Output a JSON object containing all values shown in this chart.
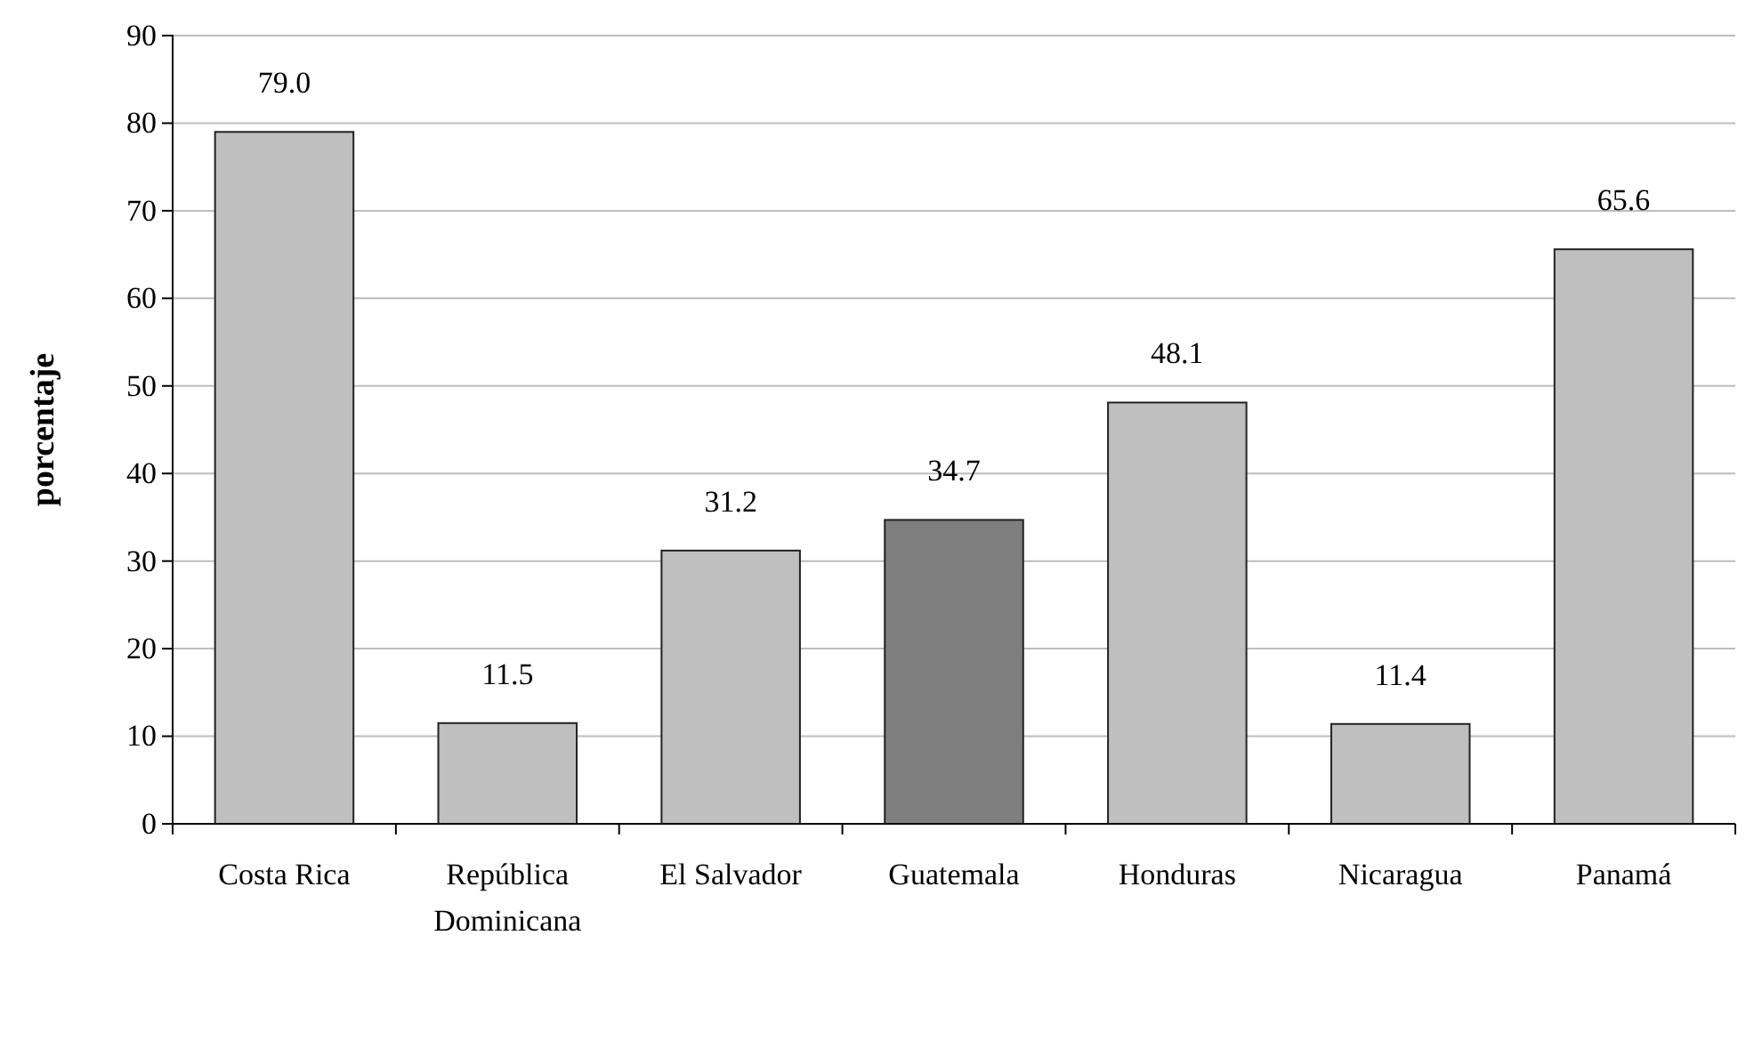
{
  "chart_data": {
    "type": "bar",
    "ylabel": "porcentaje",
    "categories": [
      "Costa Rica",
      "República Dominicana",
      "El Salvador",
      "Guatemala",
      "Honduras",
      "Nicaragua",
      "Panamá"
    ],
    "values": [
      79.0,
      11.5,
      31.2,
      34.7,
      48.1,
      11.4,
      65.6
    ],
    "value_labels": [
      "79.0",
      "11.5",
      "31.2",
      "34.7",
      "48.1",
      "11.4",
      "65.6"
    ],
    "colors": [
      "#bfbfbf",
      "#bfbfbf",
      "#bfbfbf",
      "#7f7f7f",
      "#bfbfbf",
      "#bfbfbf",
      "#bfbfbf"
    ],
    "ylim": [
      0,
      90
    ],
    "yticks": [
      0,
      10,
      20,
      30,
      40,
      50,
      60,
      70,
      80,
      90
    ],
    "grid": "y"
  }
}
